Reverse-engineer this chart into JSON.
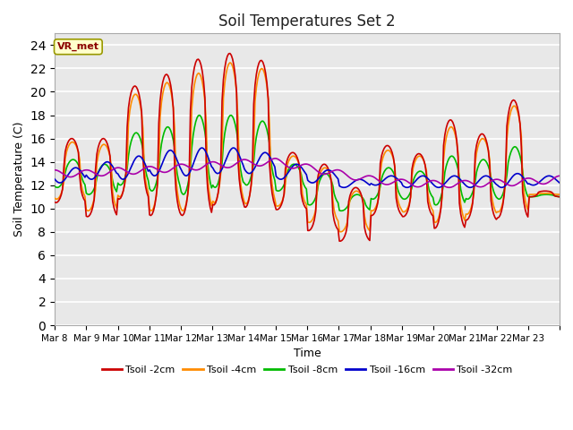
{
  "title": "Soil Temperatures Set 2",
  "xlabel": "Time",
  "ylabel": "Soil Temperature (C)",
  "annotation": "VR_met",
  "ylim": [
    0,
    25
  ],
  "yticks": [
    0,
    2,
    4,
    6,
    8,
    10,
    12,
    14,
    16,
    18,
    20,
    22,
    24
  ],
  "colors": {
    "Tsoil -2cm": "#cc0000",
    "Tsoil -4cm": "#ff8c00",
    "Tsoil -8cm": "#00bb00",
    "Tsoil -16cm": "#0000cc",
    "Tsoil -32cm": "#aa00aa"
  },
  "bg_color": "#e8e8e8",
  "legend_labels": [
    "Tsoil -2cm",
    "Tsoil -4cm",
    "Tsoil -8cm",
    "Tsoil -16cm",
    "Tsoil -32cm"
  ],
  "x_tick_labels": [
    "Mar 8",
    "Mar 9",
    "Mar 10",
    "Mar 11",
    "Mar 12",
    "Mar 13",
    "Mar 14",
    "Mar 15",
    "Mar 16",
    "Mar 17",
    "Mar 18",
    "Mar 19",
    "Mar 20",
    "Mar 21",
    "Mar 22",
    "Mar 23"
  ],
  "n_days": 16,
  "hours_per_day": 24,
  "figsize": [
    6.4,
    4.8
  ],
  "dpi": 100
}
